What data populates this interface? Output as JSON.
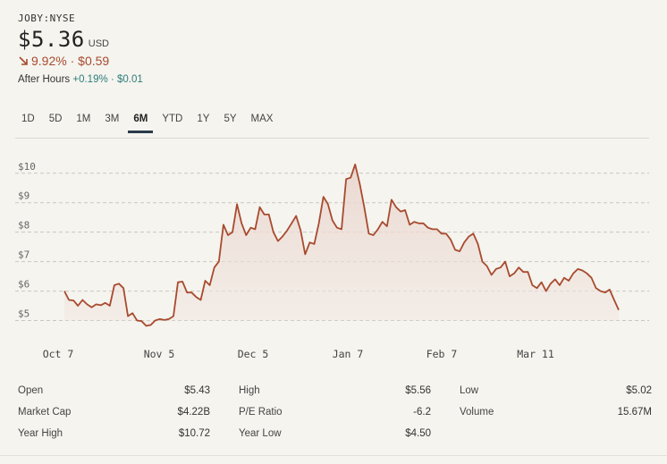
{
  "ticker": "JOBY:NYSE",
  "price": "$5.36",
  "currency": "USD",
  "change": {
    "direction": "down",
    "percent": "9.92%",
    "separator": "·",
    "amount": "$0.59",
    "color": "#a84a2e"
  },
  "after_hours": {
    "label": "After Hours",
    "percent": "+0.19%",
    "separator": "·",
    "amount": "$0.01",
    "color": "#2e7d7a"
  },
  "tabs": [
    "1D",
    "5D",
    "1M",
    "3M",
    "6M",
    "YTD",
    "1Y",
    "5Y",
    "MAX"
  ],
  "active_tab": "6M",
  "stats": [
    [
      {
        "label": "Open",
        "value": "$5.43"
      },
      {
        "label": "High",
        "value": "$5.56"
      },
      {
        "label": "Low",
        "value": "$5.02"
      }
    ],
    [
      {
        "label": "Market Cap",
        "value": "$4.22B"
      },
      {
        "label": "P/E Ratio",
        "value": "-6.2"
      },
      {
        "label": "Volume",
        "value": "15.67M"
      }
    ],
    [
      {
        "label": "Year High",
        "value": "$10.72"
      },
      {
        "label": "Year Low",
        "value": "$4.50"
      }
    ]
  ],
  "chart_data": {
    "type": "area",
    "x_tick_labels": [
      "Oct 7",
      "Nov 5",
      "Dec 5",
      "Jan 7",
      "Feb 7",
      "Mar 11"
    ],
    "y_tick_labels": [
      "$10",
      "$9",
      "$8",
      "$7",
      "$6",
      "$5"
    ],
    "y_ticks": [
      10,
      9,
      8,
      7,
      6,
      5
    ],
    "ylim": [
      4.5,
      10.6
    ],
    "grid": true,
    "line_color": "#a84a2e",
    "series": [
      {
        "values": [
          6.0,
          5.7,
          5.68,
          5.5,
          5.7,
          5.55,
          5.45,
          5.55,
          5.52,
          5.6,
          5.5,
          6.2,
          6.25,
          6.1,
          5.15,
          5.25,
          5.0,
          4.98,
          4.82,
          4.85,
          5.0,
          5.05,
          5.02,
          5.05,
          5.15,
          6.3,
          6.32,
          5.95,
          5.95,
          5.8,
          5.7,
          6.35,
          6.2,
          6.8,
          7.0,
          8.25,
          7.9,
          8.0,
          8.95,
          8.3,
          7.9,
          8.15,
          8.1,
          8.85,
          8.6,
          8.6,
          8.0,
          7.7,
          7.85,
          8.05,
          8.3,
          8.55,
          8.05,
          7.25,
          7.65,
          7.6,
          8.3,
          9.2,
          8.95,
          8.4,
          8.15,
          8.1,
          9.8,
          9.85,
          10.3,
          9.65,
          8.85,
          7.95,
          7.9,
          8.1,
          8.35,
          8.2,
          9.1,
          8.85,
          8.7,
          8.75,
          8.25,
          8.35,
          8.3,
          8.3,
          8.15,
          8.1,
          8.1,
          7.95,
          7.95,
          7.75,
          7.4,
          7.35,
          7.65,
          7.85,
          7.95,
          7.6,
          7.0,
          6.85,
          6.55,
          6.75,
          6.8,
          7.0,
          6.5,
          6.6,
          6.8,
          6.65,
          6.65,
          6.2,
          6.1,
          6.3,
          6.0,
          6.25,
          6.4,
          6.2,
          6.45,
          6.35,
          6.6,
          6.75,
          6.7,
          6.6,
          6.45,
          6.1,
          6.0,
          5.95,
          6.05,
          5.7,
          5.36
        ]
      }
    ]
  }
}
